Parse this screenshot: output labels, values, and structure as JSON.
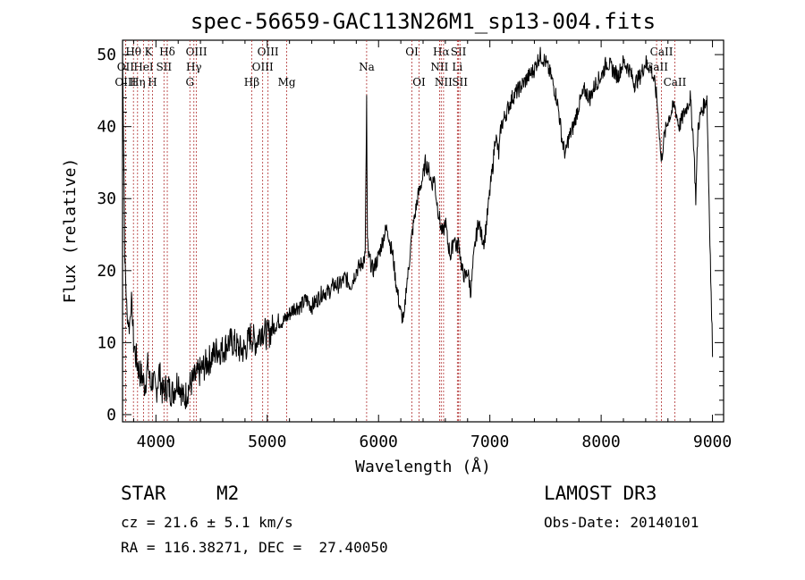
{
  "chart_data": {
    "type": "line",
    "title": "spec-56659-GAC113N26M1_sp13-004.fits",
    "xlabel": "Wavelength (Å)",
    "ylabel": "Flux (relative)",
    "xlim": [
      3700,
      9100
    ],
    "ylim": [
      -1,
      52
    ],
    "xticks": [
      4000,
      5000,
      6000,
      7000,
      8000,
      9000
    ],
    "yticks": [
      0,
      10,
      20,
      30,
      40,
      50
    ],
    "grid": false,
    "series": [
      {
        "name": "spectrum",
        "x": [
          3700,
          3710,
          3720,
          3730,
          3740,
          3760,
          3780,
          3800,
          3820,
          3850,
          3880,
          3900,
          3930,
          3950,
          3970,
          4000,
          4030,
          4060,
          4100,
          4150,
          4200,
          4250,
          4300,
          4350,
          4400,
          4450,
          4500,
          4550,
          4600,
          4650,
          4700,
          4750,
          4800,
          4850,
          4900,
          4950,
          5000,
          5050,
          5100,
          5150,
          5200,
          5250,
          5300,
          5350,
          5400,
          5450,
          5500,
          5550,
          5600,
          5650,
          5700,
          5750,
          5800,
          5850,
          5880,
          5893,
          5900,
          5910,
          5950,
          6000,
          6050,
          6080,
          6100,
          6130,
          6150,
          6180,
          6200,
          6230,
          6250,
          6270,
          6280,
          6300,
          6320,
          6350,
          6380,
          6400,
          6420,
          6450,
          6480,
          6500,
          6520,
          6540,
          6560,
          6580,
          6600,
          6620,
          6650,
          6680,
          6700,
          6720,
          6750,
          6780,
          6800,
          6830,
          6850,
          6870,
          6890,
          6900,
          6920,
          6950,
          6980,
          7000,
          7030,
          7050,
          7080,
          7100,
          7150,
          7200,
          7250,
          7300,
          7350,
          7400,
          7450,
          7500,
          7550,
          7600,
          7620,
          7650,
          7680,
          7700,
          7750,
          7800,
          7850,
          7900,
          7950,
          8000,
          8050,
          8100,
          8150,
          8200,
          8250,
          8300,
          8350,
          8400,
          8450,
          8480,
          8500,
          8520,
          8540,
          8560,
          8600,
          8630,
          8660,
          8700,
          8750,
          8800,
          8830,
          8850,
          8870,
          8900,
          8950,
          9000
        ],
        "y": [
          50,
          38,
          22,
          18,
          14,
          12,
          16,
          10,
          8,
          6,
          5,
          4,
          7,
          4,
          5,
          3,
          6,
          3,
          4,
          3,
          5,
          2,
          4,
          5,
          6,
          7,
          8,
          9,
          9,
          10,
          10,
          9,
          9,
          11,
          10,
          12,
          11,
          12,
          13,
          13,
          14,
          15,
          15,
          16,
          15,
          16,
          17,
          17,
          18,
          18,
          19,
          18,
          20,
          21,
          22,
          44,
          24,
          22,
          20,
          22,
          25,
          26,
          24,
          22,
          19,
          16,
          14,
          13,
          18,
          20,
          22,
          25,
          27,
          30,
          32,
          33,
          35,
          34,
          32,
          33,
          30,
          28,
          26,
          25,
          27,
          24,
          22,
          25,
          23,
          24,
          20,
          19,
          20,
          17,
          21,
          24,
          26,
          27,
          25,
          24,
          28,
          31,
          35,
          39,
          36,
          40,
          42,
          44,
          45,
          46,
          47,
          48,
          50,
          49,
          47,
          44,
          42,
          38,
          36,
          38,
          40,
          43,
          45,
          44,
          46,
          47,
          49,
          48,
          47,
          49,
          48,
          46,
          47,
          49,
          48,
          46,
          44,
          40,
          35,
          38,
          41,
          42,
          43,
          40,
          42,
          44,
          38,
          30,
          40,
          42,
          44,
          8
        ]
      }
    ],
    "line_markers": [
      {
        "label": "Hθ",
        "x": 3798,
        "row": 1
      },
      {
        "label": "K",
        "x": 3934,
        "row": 1
      },
      {
        "label": "Hδ",
        "x": 4102,
        "row": 1
      },
      {
        "label": "OIII",
        "x": 4364,
        "row": 1
      },
      {
        "label": "OIII",
        "x": 5007,
        "row": 1
      },
      {
        "label": "OI",
        "x": 6300,
        "row": 1
      },
      {
        "label": "Hα",
        "x": 6563,
        "row": 1
      },
      {
        "label": "SII",
        "x": 6718,
        "row": 1
      },
      {
        "label": "CaII",
        "x": 8542,
        "row": 1
      },
      {
        "label": "OII",
        "x": 3727,
        "row": 2
      },
      {
        "label": "HeI",
        "x": 3889,
        "row": 2
      },
      {
        "label": "SII",
        "x": 4072,
        "row": 2
      },
      {
        "label": "Hγ",
        "x": 4341,
        "row": 2
      },
      {
        "label": "OIII",
        "x": 4959,
        "row": 2
      },
      {
        "label": "Na",
        "x": 5893,
        "row": 2
      },
      {
        "label": "NII",
        "x": 6548,
        "row": 2
      },
      {
        "label": "Li",
        "x": 6708,
        "row": 2
      },
      {
        "label": "CaII",
        "x": 8498,
        "row": 2
      },
      {
        "label": "OIII",
        "x": 3727,
        "row": 3
      },
      {
        "label": "Hη",
        "x": 3835,
        "row": 3
      },
      {
        "label": "H",
        "x": 3969,
        "row": 3
      },
      {
        "label": "G",
        "x": 4305,
        "row": 3
      },
      {
        "label": "Hβ",
        "x": 4861,
        "row": 3
      },
      {
        "label": "Mg",
        "x": 5175,
        "row": 3
      },
      {
        "label": "OI",
        "x": 6364,
        "row": 3
      },
      {
        "label": "NII",
        "x": 6584,
        "row": 3
      },
      {
        "label": "SII",
        "x": 6731,
        "row": 3
      },
      {
        "label": "CaII",
        "x": 8662,
        "row": 3
      }
    ]
  },
  "footer": {
    "class_label": "STAR",
    "subclass": "M2",
    "survey": "LAMOST DR3",
    "cz": "cz = 21.6 ± 5.1 km/s",
    "obs_date": "Obs-Date: 20140101",
    "coords": "RA = 116.38271, DEC =  27.40050"
  }
}
